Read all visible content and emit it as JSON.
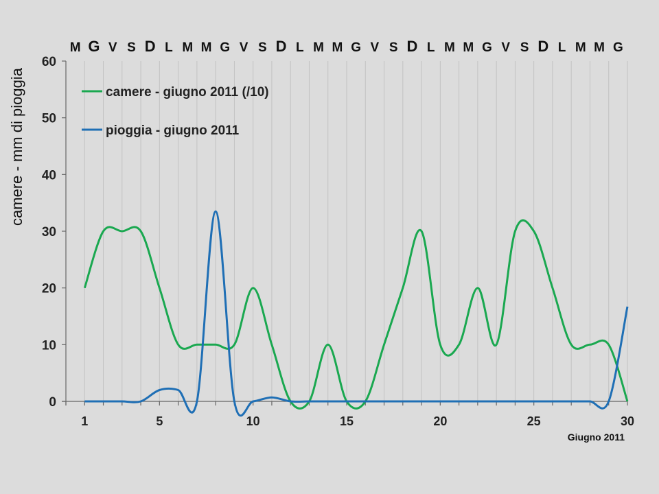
{
  "chart_data": {
    "type": "line",
    "weekday_letters": [
      "M",
      "G",
      "V",
      "S",
      "D",
      "L",
      "M",
      "M",
      "G",
      "V",
      "S",
      "D",
      "L",
      "M",
      "M",
      "G",
      "V",
      "S",
      "D",
      "L",
      "M",
      "M",
      "G",
      "V",
      "S",
      "D",
      "L",
      "M",
      "M",
      "G"
    ],
    "sunday_emphasis": true,
    "ylabel": "camere - mm di pioggia",
    "xlabel": "Giugno 2011",
    "ylim": [
      0,
      60
    ],
    "yticks": [
      0,
      10,
      20,
      30,
      40,
      50,
      60
    ],
    "xlim": [
      1,
      30
    ],
    "xticks": [
      1,
      5,
      10,
      15,
      20,
      25,
      30
    ],
    "grid": "vertical per day",
    "legend_position": "top-left",
    "x": [
      1,
      2,
      3,
      4,
      5,
      6,
      7,
      8,
      9,
      10,
      11,
      12,
      13,
      14,
      15,
      16,
      17,
      18,
      19,
      20,
      21,
      22,
      23,
      24,
      25,
      26,
      27,
      28,
      29,
      30
    ],
    "series": [
      {
        "name": "camere - giugno 2011 (/10)",
        "color": "#1aa850",
        "values": [
          20,
          30,
          30,
          30,
          20,
          10,
          10,
          10,
          10,
          20,
          10,
          0,
          0,
          10,
          0,
          0,
          10,
          20,
          30,
          10,
          10,
          20,
          10,
          30,
          30,
          20,
          10,
          10,
          10,
          0
        ]
      },
      {
        "name": "pioggia -  giugno 2011",
        "color": "#1f6fb5",
        "values": [
          0,
          0,
          0,
          0,
          2,
          2,
          0,
          33.5,
          0,
          0,
          0.7,
          0,
          0,
          0,
          0,
          0,
          0,
          0,
          0,
          0,
          0,
          0,
          0,
          0,
          0,
          0,
          0,
          0,
          0,
          16.7
        ]
      }
    ]
  }
}
